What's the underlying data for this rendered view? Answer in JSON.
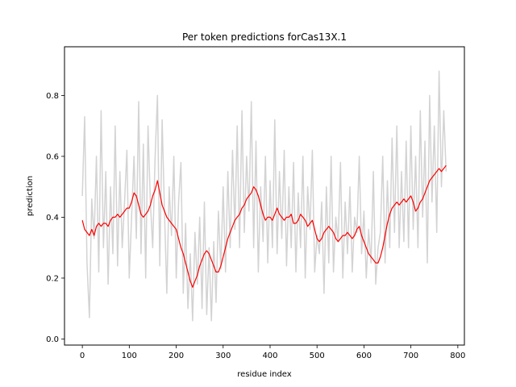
{
  "chart_data": {
    "type": "line",
    "title": "Per token predictions forCas13X.1",
    "xlabel": "residue index",
    "ylabel": "prediction",
    "xlim": [
      -38,
      814
    ],
    "ylim": [
      -0.02,
      0.96
    ],
    "xticks": [
      0,
      100,
      200,
      300,
      400,
      500,
      600,
      700,
      800
    ],
    "yticks": [
      0.0,
      0.2,
      0.4,
      0.6,
      0.8
    ],
    "ytick_labels": [
      "0.0",
      "0.2",
      "0.4",
      "0.6",
      "0.8"
    ],
    "grid": false,
    "legend": "none",
    "series": [
      {
        "role": "per-token predictions",
        "color": "#d3d3d3",
        "x": [
          0,
          5,
          10,
          15,
          20,
          25,
          30,
          35,
          40,
          45,
          50,
          55,
          60,
          65,
          70,
          75,
          80,
          85,
          90,
          95,
          100,
          105,
          110,
          115,
          120,
          125,
          130,
          135,
          140,
          145,
          150,
          155,
          160,
          165,
          170,
          175,
          180,
          185,
          190,
          195,
          200,
          205,
          210,
          215,
          220,
          225,
          230,
          235,
          240,
          245,
          250,
          255,
          260,
          265,
          270,
          275,
          280,
          285,
          290,
          295,
          300,
          305,
          310,
          315,
          320,
          325,
          330,
          335,
          340,
          345,
          350,
          355,
          360,
          365,
          370,
          375,
          380,
          385,
          390,
          395,
          400,
          405,
          410,
          415,
          420,
          425,
          430,
          435,
          440,
          445,
          450,
          455,
          460,
          465,
          470,
          475,
          480,
          485,
          490,
          495,
          500,
          505,
          510,
          515,
          520,
          525,
          530,
          535,
          540,
          545,
          550,
          555,
          560,
          565,
          570,
          575,
          580,
          585,
          590,
          595,
          600,
          605,
          610,
          615,
          620,
          625,
          630,
          635,
          640,
          645,
          650,
          655,
          660,
          665,
          670,
          675,
          680,
          685,
          690,
          695,
          700,
          705,
          710,
          715,
          720,
          725,
          730,
          735,
          740,
          745,
          750,
          755,
          760,
          765,
          770,
          775
        ],
        "y": [
          0.47,
          0.73,
          0.25,
          0.07,
          0.46,
          0.33,
          0.6,
          0.22,
          0.75,
          0.3,
          0.55,
          0.18,
          0.5,
          0.28,
          0.7,
          0.24,
          0.55,
          0.3,
          0.45,
          0.62,
          0.2,
          0.4,
          0.6,
          0.33,
          0.78,
          0.28,
          0.64,
          0.2,
          0.7,
          0.45,
          0.3,
          0.6,
          0.8,
          0.24,
          0.72,
          0.42,
          0.15,
          0.5,
          0.34,
          0.6,
          0.2,
          0.45,
          0.58,
          0.15,
          0.38,
          0.1,
          0.28,
          0.06,
          0.35,
          0.18,
          0.4,
          0.1,
          0.45,
          0.08,
          0.3,
          0.06,
          0.32,
          0.12,
          0.42,
          0.23,
          0.5,
          0.22,
          0.55,
          0.3,
          0.62,
          0.36,
          0.7,
          0.3,
          0.75,
          0.35,
          0.6,
          0.42,
          0.78,
          0.3,
          0.65,
          0.22,
          0.5,
          0.32,
          0.6,
          0.25,
          0.52,
          0.3,
          0.72,
          0.28,
          0.55,
          0.33,
          0.62,
          0.24,
          0.5,
          0.3,
          0.58,
          0.22,
          0.48,
          0.3,
          0.6,
          0.2,
          0.5,
          0.36,
          0.62,
          0.22,
          0.34,
          0.28,
          0.45,
          0.15,
          0.5,
          0.25,
          0.6,
          0.22,
          0.4,
          0.32,
          0.58,
          0.2,
          0.45,
          0.28,
          0.5,
          0.22,
          0.4,
          0.35,
          0.6,
          0.28,
          0.42,
          0.2,
          0.36,
          0.25,
          0.55,
          0.18,
          0.3,
          0.35,
          0.6,
          0.25,
          0.52,
          0.3,
          0.66,
          0.35,
          0.7,
          0.3,
          0.55,
          0.32,
          0.65,
          0.3,
          0.7,
          0.36,
          0.6,
          0.3,
          0.75,
          0.4,
          0.65,
          0.25,
          0.8,
          0.45,
          0.7,
          0.35,
          0.88,
          0.5,
          0.75,
          0.55
        ]
      },
      {
        "role": "smoothed",
        "color": "#ff0000",
        "x": [
          0,
          5,
          10,
          15,
          20,
          25,
          30,
          35,
          40,
          45,
          50,
          55,
          60,
          65,
          70,
          75,
          80,
          85,
          90,
          95,
          100,
          105,
          110,
          115,
          120,
          125,
          130,
          135,
          140,
          145,
          150,
          155,
          160,
          165,
          170,
          175,
          180,
          185,
          190,
          195,
          200,
          205,
          210,
          215,
          220,
          225,
          230,
          235,
          240,
          245,
          250,
          255,
          260,
          265,
          270,
          275,
          280,
          285,
          290,
          295,
          300,
          305,
          310,
          315,
          320,
          325,
          330,
          335,
          340,
          345,
          350,
          355,
          360,
          365,
          370,
          375,
          380,
          385,
          390,
          395,
          400,
          405,
          410,
          415,
          420,
          425,
          430,
          435,
          440,
          445,
          450,
          455,
          460,
          465,
          470,
          475,
          480,
          485,
          490,
          495,
          500,
          505,
          510,
          515,
          520,
          525,
          530,
          535,
          540,
          545,
          550,
          555,
          560,
          565,
          570,
          575,
          580,
          585,
          590,
          595,
          600,
          605,
          610,
          615,
          620,
          625,
          630,
          635,
          640,
          645,
          650,
          655,
          660,
          665,
          670,
          675,
          680,
          685,
          690,
          695,
          700,
          705,
          710,
          715,
          720,
          725,
          730,
          735,
          740,
          745,
          750,
          755,
          760,
          765,
          770,
          775
        ],
        "y": [
          0.39,
          0.36,
          0.35,
          0.34,
          0.36,
          0.34,
          0.37,
          0.38,
          0.37,
          0.38,
          0.38,
          0.37,
          0.39,
          0.4,
          0.4,
          0.41,
          0.4,
          0.41,
          0.42,
          0.43,
          0.43,
          0.45,
          0.48,
          0.47,
          0.44,
          0.41,
          0.4,
          0.41,
          0.42,
          0.44,
          0.47,
          0.49,
          0.52,
          0.48,
          0.44,
          0.42,
          0.4,
          0.39,
          0.38,
          0.37,
          0.36,
          0.33,
          0.3,
          0.28,
          0.25,
          0.22,
          0.19,
          0.17,
          0.19,
          0.21,
          0.24,
          0.26,
          0.28,
          0.29,
          0.28,
          0.26,
          0.24,
          0.22,
          0.22,
          0.24,
          0.27,
          0.3,
          0.33,
          0.35,
          0.37,
          0.39,
          0.4,
          0.41,
          0.43,
          0.44,
          0.46,
          0.47,
          0.48,
          0.5,
          0.49,
          0.47,
          0.44,
          0.41,
          0.39,
          0.4,
          0.4,
          0.39,
          0.41,
          0.43,
          0.41,
          0.4,
          0.39,
          0.4,
          0.4,
          0.41,
          0.38,
          0.38,
          0.39,
          0.41,
          0.4,
          0.39,
          0.37,
          0.38,
          0.39,
          0.36,
          0.33,
          0.32,
          0.33,
          0.35,
          0.36,
          0.37,
          0.36,
          0.35,
          0.33,
          0.32,
          0.33,
          0.34,
          0.34,
          0.35,
          0.34,
          0.33,
          0.34,
          0.36,
          0.37,
          0.34,
          0.32,
          0.3,
          0.28,
          0.27,
          0.26,
          0.25,
          0.25,
          0.27,
          0.3,
          0.34,
          0.38,
          0.41,
          0.43,
          0.44,
          0.45,
          0.44,
          0.45,
          0.46,
          0.45,
          0.46,
          0.47,
          0.45,
          0.42,
          0.43,
          0.45,
          0.46,
          0.48,
          0.5,
          0.52,
          0.53,
          0.54,
          0.55,
          0.56,
          0.55,
          0.56,
          0.57
        ]
      }
    ]
  }
}
